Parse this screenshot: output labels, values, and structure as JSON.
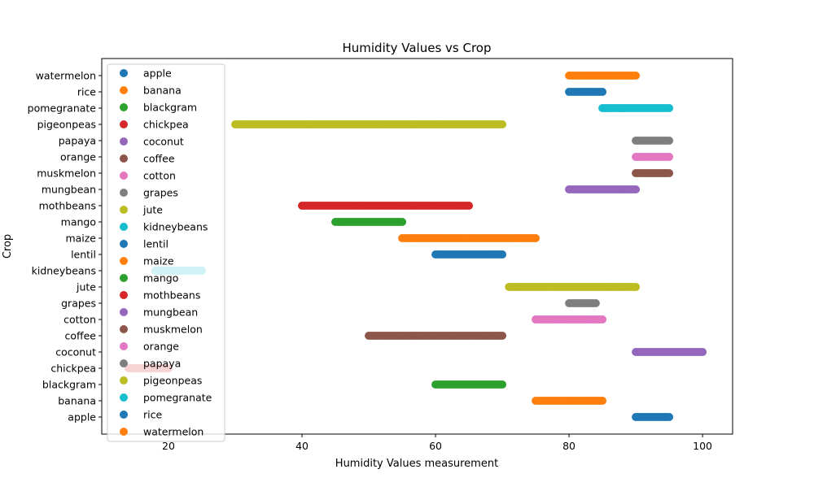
{
  "chart_data": {
    "type": "scatter",
    "title": "Humidity Values vs Crop",
    "xlabel": "Humidity Values measurement",
    "ylabel": "Crop",
    "xlim": [
      10,
      104.5
    ],
    "x_ticks": [
      20,
      40,
      60,
      80,
      100
    ],
    "categories": [
      "apple",
      "banana",
      "blackgram",
      "chickpea",
      "coconut",
      "coffee",
      "cotton",
      "grapes",
      "jute",
      "kidneybeans",
      "lentil",
      "maize",
      "mango",
      "mothbeans",
      "mungbean",
      "muskmelon",
      "orange",
      "papaya",
      "pigeonpeas",
      "pomegranate",
      "rice",
      "watermelon"
    ],
    "legend_position": "upper-left",
    "grid": false,
    "series": [
      {
        "name": "apple",
        "color": "#1f77b4",
        "range": [
          90,
          95
        ]
      },
      {
        "name": "banana",
        "color": "#ff7f0e",
        "range": [
          75,
          85
        ]
      },
      {
        "name": "blackgram",
        "color": "#2ca02c",
        "range": [
          60,
          70
        ]
      },
      {
        "name": "chickpea",
        "color": "#d62728",
        "range": [
          14,
          20
        ]
      },
      {
        "name": "coconut",
        "color": "#9467bd",
        "range": [
          90,
          100
        ]
      },
      {
        "name": "coffee",
        "color": "#8c564b",
        "range": [
          50,
          70
        ]
      },
      {
        "name": "cotton",
        "color": "#e377c2",
        "range": [
          75,
          85
        ]
      },
      {
        "name": "grapes",
        "color": "#7f7f7f",
        "range": [
          80,
          84
        ]
      },
      {
        "name": "jute",
        "color": "#bcbd22",
        "range": [
          71,
          90
        ]
      },
      {
        "name": "kidneybeans",
        "color": "#17becf",
        "range": [
          18,
          25
        ]
      },
      {
        "name": "lentil",
        "color": "#1f77b4",
        "range": [
          60,
          70
        ]
      },
      {
        "name": "maize",
        "color": "#ff7f0e",
        "range": [
          55,
          75
        ]
      },
      {
        "name": "mango",
        "color": "#2ca02c",
        "range": [
          45,
          55
        ]
      },
      {
        "name": "mothbeans",
        "color": "#d62728",
        "range": [
          40,
          65
        ]
      },
      {
        "name": "mungbean",
        "color": "#9467bd",
        "range": [
          80,
          90
        ]
      },
      {
        "name": "muskmelon",
        "color": "#8c564b",
        "range": [
          90,
          95
        ]
      },
      {
        "name": "orange",
        "color": "#e377c2",
        "range": [
          90,
          95
        ]
      },
      {
        "name": "papaya",
        "color": "#7f7f7f",
        "range": [
          90,
          95
        ]
      },
      {
        "name": "pigeonpeas",
        "color": "#bcbd22",
        "range": [
          30,
          70
        ]
      },
      {
        "name": "pomegranate",
        "color": "#17becf",
        "range": [
          85,
          95
        ]
      },
      {
        "name": "rice",
        "color": "#1f77b4",
        "range": [
          80,
          85
        ]
      },
      {
        "name": "watermelon",
        "color": "#ff7f0e",
        "range": [
          80,
          90
        ]
      }
    ]
  }
}
